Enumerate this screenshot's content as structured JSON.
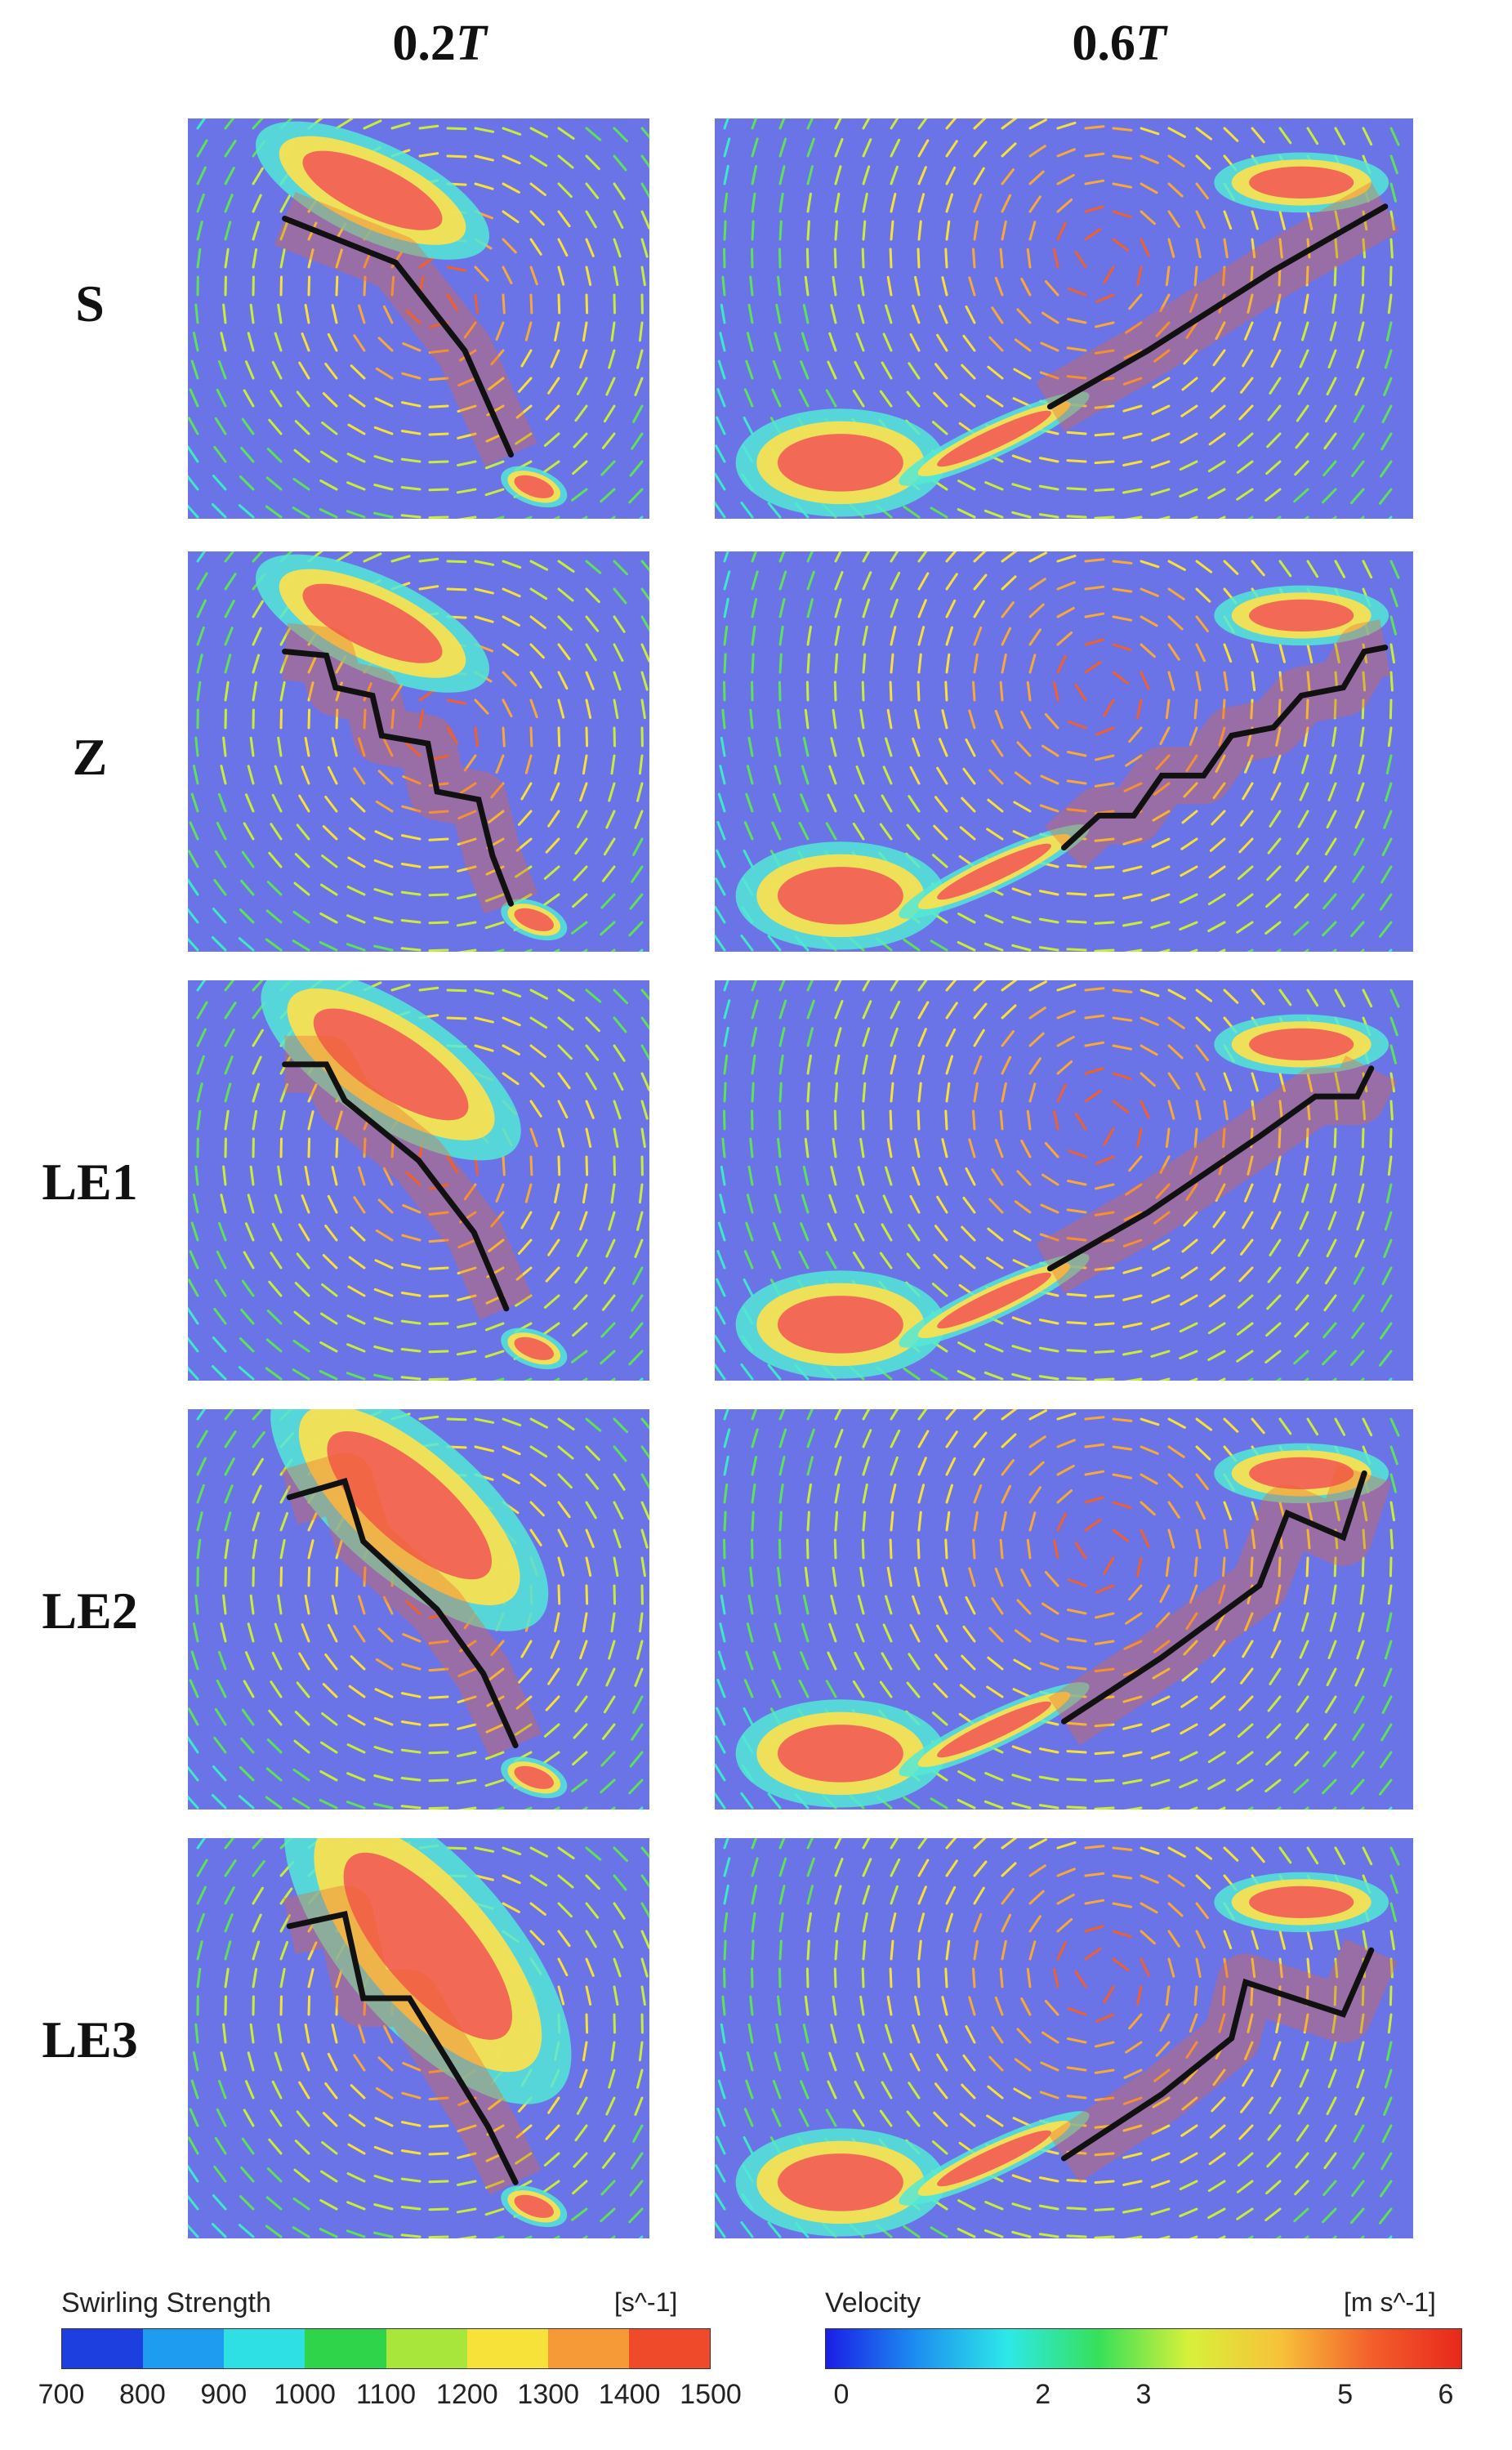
{
  "columns": [
    {
      "label_main": "0.2",
      "label_italic": "T"
    },
    {
      "label_main": "0.6",
      "label_italic": "T"
    }
  ],
  "rows": [
    {
      "label": "S",
      "shape": "smooth"
    },
    {
      "label": "Z",
      "shape": "zigzag"
    },
    {
      "label": "LE1",
      "shape": "step1"
    },
    {
      "label": "LE2",
      "shape": "step2"
    },
    {
      "label": "LE3",
      "shape": "step3"
    }
  ],
  "colors": {
    "background": "#6b74e6",
    "vortex_core": "#f26a55",
    "vortex_mid": "#ffe14a",
    "vortex_edge": "#53e8d6",
    "blade": "#111111"
  },
  "legend_swirling": {
    "title": "Swirling Strength",
    "unit": "[s^-1]",
    "ticks": [
      "700",
      "800",
      "900",
      "1000",
      "1100",
      "1200",
      "1300",
      "1400",
      "1500"
    ],
    "colors": [
      "#1d3fe0",
      "#1e9df0",
      "#2ee0e4",
      "#2fd44a",
      "#a8e63c",
      "#f7e23a",
      "#f59a36",
      "#ef4a2a"
    ]
  },
  "legend_velocity": {
    "title": "Velocity",
    "unit": "[m s^-1]",
    "ticks": [
      "0",
      "2",
      "3",
      "5",
      "6"
    ],
    "tick_values": [
      0,
      2,
      3,
      5,
      6
    ],
    "range": [
      0,
      6
    ]
  }
}
